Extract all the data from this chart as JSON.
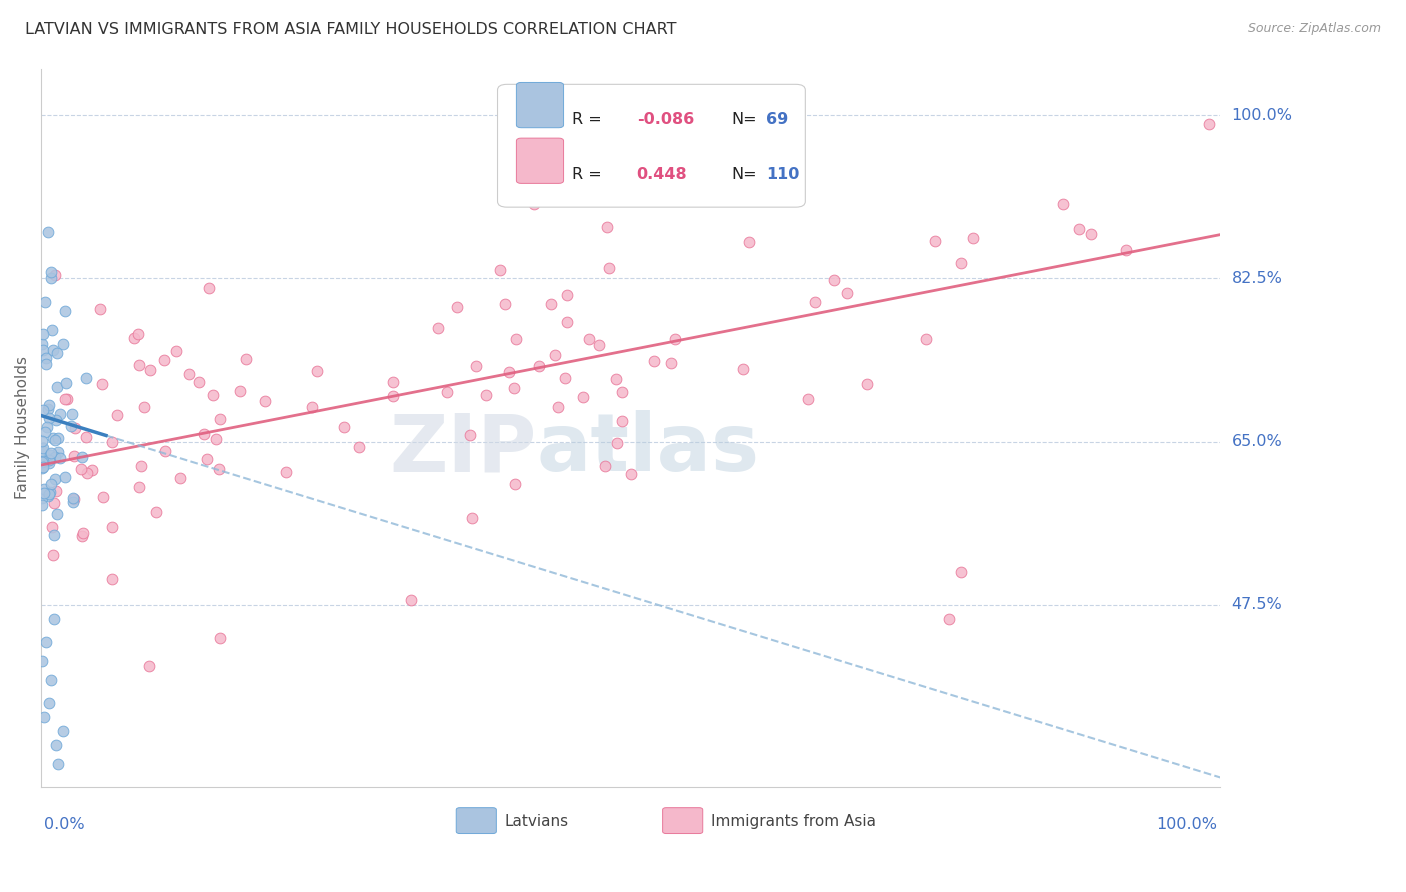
{
  "title": "LATVIAN VS IMMIGRANTS FROM ASIA FAMILY HOUSEHOLDS CORRELATION CHART",
  "source": "Source: ZipAtlas.com",
  "ylabel": "Family Households",
  "watermark_zip": "ZIP",
  "watermark_atlas": "atlas",
  "ytick_values": [
    0.475,
    0.65,
    0.825,
    1.0
  ],
  "ytick_labels": [
    "47.5%",
    "65.0%",
    "82.5%",
    "100.0%"
  ],
  "xlim": [
    0.0,
    1.0
  ],
  "ylim": [
    0.28,
    1.05
  ],
  "latvian_color": "#aac4e0",
  "latvian_edge": "#6ea8d8",
  "asia_color": "#f5b8cb",
  "asia_edge": "#e8789a",
  "trend_latvian_solid_color": "#3a7fbf",
  "trend_latvian_dash_color": "#90b8d8",
  "trend_asia_color": "#e06080",
  "legend_R_latvian": "-0.086",
  "legend_N_latvian": "69",
  "legend_R_asia": "0.448",
  "legend_N_asia": "110",
  "background_color": "#ffffff",
  "grid_color": "#c8d4e4",
  "title_color": "#333333",
  "axis_label_color": "#4472c4",
  "right_tick_color": "#4472c4",
  "latvian_trend_x0": 0.0,
  "latvian_trend_y0": 0.678,
  "latvian_trend_x1": 1.0,
  "latvian_trend_y1": 0.29,
  "asia_trend_x0": 0.0,
  "asia_trend_y0": 0.625,
  "asia_trend_x1": 1.0,
  "asia_trend_y1": 0.872
}
